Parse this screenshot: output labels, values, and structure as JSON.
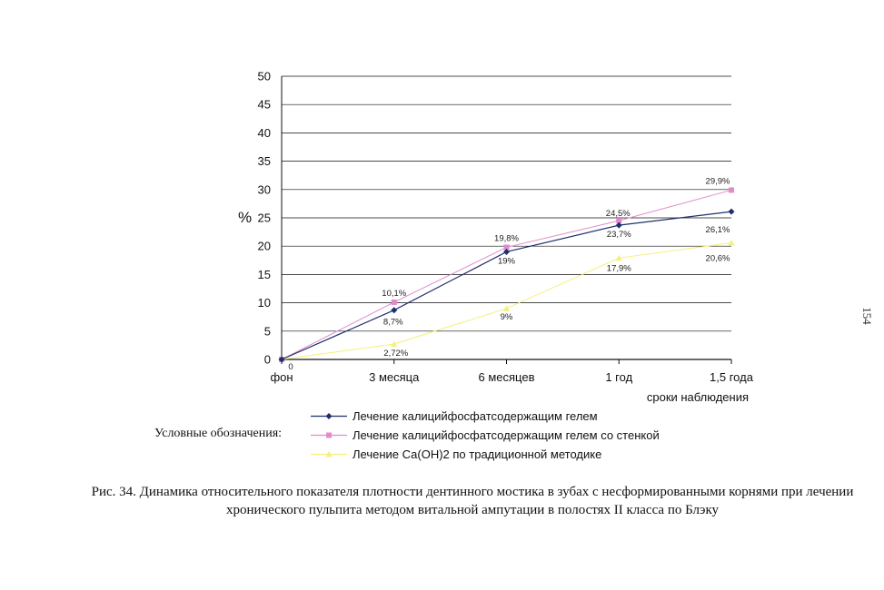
{
  "chart_data": {
    "type": "line",
    "ylabel": "%",
    "xlabel": "сроки наблюдения",
    "ylim": [
      0,
      50
    ],
    "y_ticks": [
      0,
      5,
      10,
      15,
      20,
      25,
      30,
      35,
      40,
      45,
      50
    ],
    "categories": [
      "фон",
      "3 месяца",
      "6 месяцев",
      "1 год",
      "1,5 года"
    ],
    "grid": "horizontal",
    "series": [
      {
        "name": "Лечение калицийфосфатсодержащим гелем",
        "color": "#1f2f6e",
        "marker": "diamond",
        "values": [
          0,
          8.7,
          19,
          23.7,
          26.1
        ],
        "labels": [
          "",
          "8,7%",
          "19%",
          "23,7%",
          "26,1%"
        ]
      },
      {
        "name": "Лечение калицийфосфатсодержащим гелем со стенкой",
        "color": "#e08ccc",
        "marker": "square",
        "values": [
          0,
          10.1,
          19.8,
          24.5,
          29.9
        ],
        "labels": [
          "",
          "10,1%",
          "19,8%",
          "24,5%",
          "29,9%"
        ]
      },
      {
        "name": "Лечение Са(ОН)2 по традиционной методике",
        "color": "#f4f07a",
        "marker": "triangle",
        "values": [
          0,
          2.72,
          9,
          17.9,
          20.6
        ],
        "labels": [
          "0",
          "2,72%",
          "9%",
          "17,9%",
          "20,6%"
        ]
      }
    ]
  },
  "legend_caption": "Условные обозначения:",
  "page_number": "154",
  "figure_caption": "Рис. 34. Динамика относительного показателя плотности дентинного мостика в зубах с несформированными корнями при лечении хронического пульпита методом витальной ампутации в полостях II класса по Блэку"
}
